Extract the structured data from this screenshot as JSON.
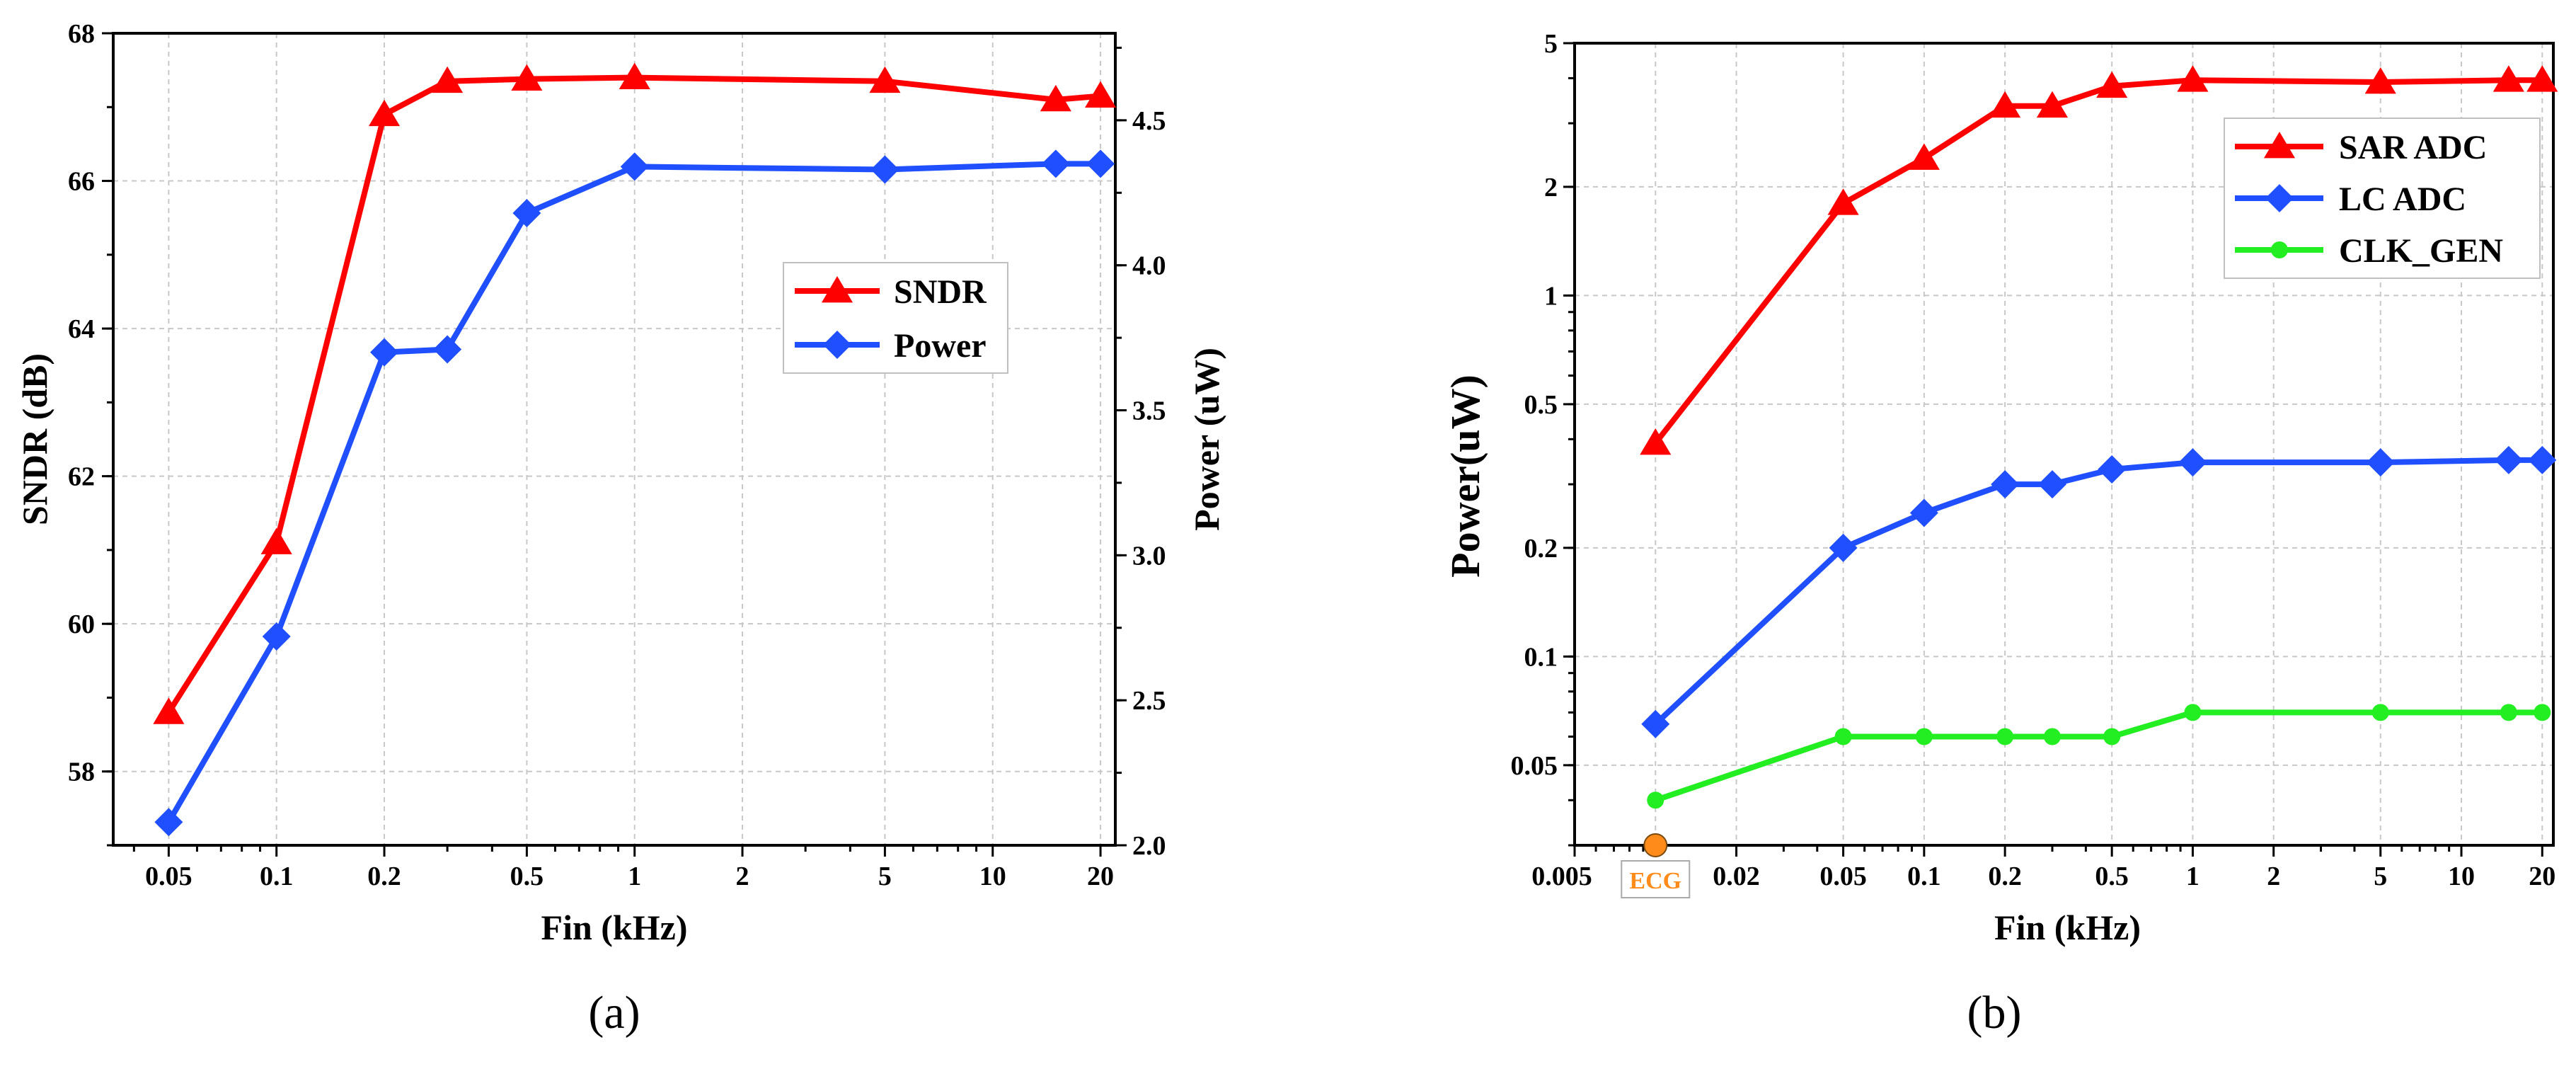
{
  "chart_data": [
    {
      "panel_label": "(a)",
      "type": "line",
      "xlabel": "Fin (kHz)",
      "x_scale": "log",
      "xlim": [
        0.035,
        22
      ],
      "x_ticks": [
        0.05,
        0.1,
        0.2,
        0.5,
        1,
        2,
        5,
        10,
        20
      ],
      "ylabel": "SNDR (dB)",
      "ylim": [
        57,
        68
      ],
      "y_ticks": [
        58,
        60,
        62,
        64,
        66,
        68
      ],
      "y2label": "Power (uW)",
      "y2lim": [
        2.0,
        4.8
      ],
      "y2_ticks": [
        2.0,
        2.5,
        3.0,
        3.5,
        4.0,
        4.5
      ],
      "grid": true,
      "legend_position": "center-right",
      "series": [
        {
          "name": "SNDR",
          "axis": "left",
          "marker": "triangle",
          "color": "#ff0000",
          "x": [
            0.05,
            0.1,
            0.2,
            0.3,
            0.5,
            1,
            5,
            15,
            20
          ],
          "y": [
            58.8,
            61.1,
            66.9,
            67.35,
            67.38,
            67.4,
            67.35,
            67.1,
            67.15
          ]
        },
        {
          "name": "Power",
          "axis": "right",
          "marker": "diamond",
          "color": "#1f4fff",
          "x": [
            0.05,
            0.1,
            0.2,
            0.3,
            0.5,
            1,
            5,
            15,
            20
          ],
          "y": [
            2.08,
            2.72,
            3.7,
            3.71,
            4.18,
            4.34,
            4.33,
            4.35,
            4.35
          ]
        }
      ]
    },
    {
      "panel_label": "(b)",
      "type": "line",
      "xlabel": "Fin (kHz)",
      "x_scale": "log",
      "xlim": [
        0.005,
        22
      ],
      "x_ticks": [
        0.005,
        0.02,
        0.05,
        0.1,
        0.2,
        0.5,
        1,
        2,
        5,
        10,
        20
      ],
      "ylabel": "Power(uW)",
      "y_scale": "log",
      "ylim": [
        0.03,
        5
      ],
      "y_ticks": [
        0.05,
        0.1,
        0.2,
        0.5,
        1,
        2,
        5
      ],
      "grid": true,
      "legend_position": "top-right",
      "annotation": {
        "label": "ECG",
        "x": 0.01,
        "color": "#ff8c1a"
      },
      "series": [
        {
          "name": "SAR ADC",
          "marker": "triangle",
          "color": "#ff0000",
          "x": [
            0.01,
            0.05,
            0.1,
            0.2,
            0.3,
            0.5,
            1,
            5,
            15,
            20
          ],
          "y": [
            0.39,
            1.8,
            2.4,
            3.35,
            3.35,
            3.8,
            3.95,
            3.9,
            3.95,
            3.95
          ]
        },
        {
          "name": "LC ADC",
          "marker": "diamond",
          "color": "#1f4fff",
          "x": [
            0.01,
            0.05,
            0.1,
            0.2,
            0.3,
            0.5,
            1,
            5,
            15,
            20
          ],
          "y": [
            0.065,
            0.2,
            0.25,
            0.3,
            0.3,
            0.33,
            0.345,
            0.345,
            0.35,
            0.35
          ]
        },
        {
          "name": "CLK_GEN",
          "marker": "circle",
          "color": "#22ee22",
          "x": [
            0.01,
            0.05,
            0.1,
            0.2,
            0.3,
            0.5,
            1,
            5,
            15,
            20
          ],
          "y": [
            0.04,
            0.06,
            0.06,
            0.06,
            0.06,
            0.06,
            0.07,
            0.07,
            0.07,
            0.07
          ]
        }
      ]
    }
  ]
}
